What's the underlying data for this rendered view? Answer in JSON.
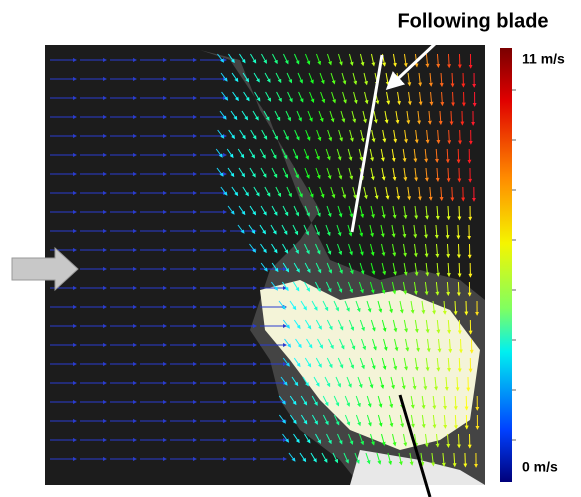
{
  "annotation": {
    "label": "Following blade"
  },
  "colorbar": {
    "max_label": "11 m/s",
    "min_label": "0 m/s"
  }
}
